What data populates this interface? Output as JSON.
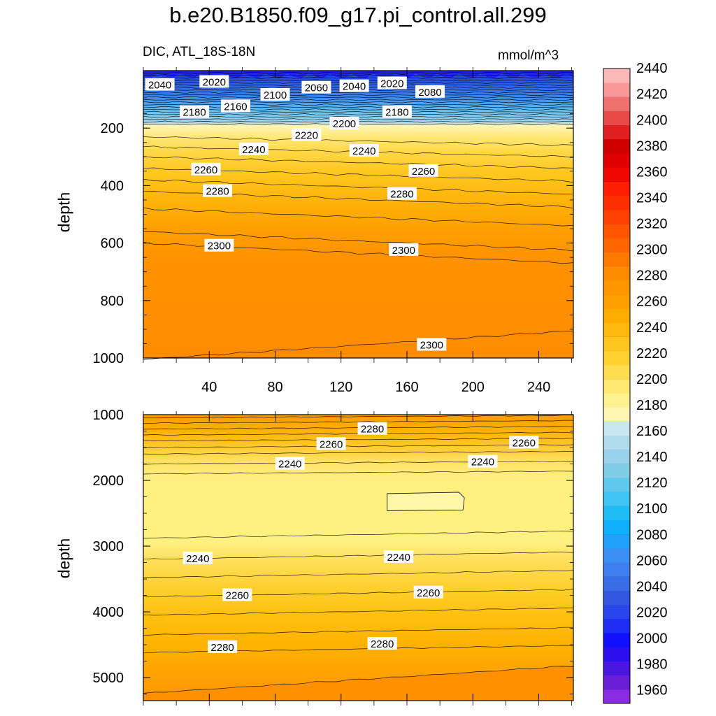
{
  "chart_data": {
    "type": "contour",
    "title": "b.e20.B1850.f09_g17.pi_control.all.299",
    "variable": "DIC, ATL_18S-18N",
    "units": "mmol/m^3",
    "xlabel": "",
    "ylabel": "depth",
    "x_ticks": [
      "40",
      "80",
      "120",
      "160",
      "200",
      "240"
    ],
    "x_tick_values": [
      40,
      80,
      120,
      160,
      200,
      240
    ],
    "xlim": [
      0,
      261
    ],
    "panels": [
      {
        "name": "upper",
        "ylim": [
          0,
          1000
        ],
        "y_ticks": [
          "200",
          "400",
          "600",
          "800",
          "1000"
        ],
        "y_tick_values": [
          200,
          400,
          600,
          800,
          1000
        ],
        "contour_labels": [
          {
            "text": "2040",
            "x": 10,
            "y": 50
          },
          {
            "text": "2020",
            "x": 43,
            "y": 40
          },
          {
            "text": "2100",
            "x": 80,
            "y": 85
          },
          {
            "text": "2060",
            "x": 105,
            "y": 60
          },
          {
            "text": "2040",
            "x": 128,
            "y": 55
          },
          {
            "text": "2020",
            "x": 151,
            "y": 45
          },
          {
            "text": "2080",
            "x": 174,
            "y": 75
          },
          {
            "text": "2180",
            "x": 31,
            "y": 145
          },
          {
            "text": "2160",
            "x": 56,
            "y": 125
          },
          {
            "text": "2180",
            "x": 154,
            "y": 145
          },
          {
            "text": "2200",
            "x": 122,
            "y": 185
          },
          {
            "text": "2220",
            "x": 99,
            "y": 225
          },
          {
            "text": "2240",
            "x": 67,
            "y": 275
          },
          {
            "text": "2240",
            "x": 134,
            "y": 280
          },
          {
            "text": "2260",
            "x": 38,
            "y": 345
          },
          {
            "text": "2260",
            "x": 170,
            "y": 350
          },
          {
            "text": "2280",
            "x": 45,
            "y": 420
          },
          {
            "text": "2280",
            "x": 157,
            "y": 430
          },
          {
            "text": "2300",
            "x": 46,
            "y": 610
          },
          {
            "text": "2300",
            "x": 158,
            "y": 625
          },
          {
            "text": "2300",
            "x": 175,
            "y": 955
          }
        ]
      },
      {
        "name": "lower",
        "ylim": [
          1000,
          5350
        ],
        "y_ticks": [
          "1000",
          "2000",
          "3000",
          "4000",
          "5000"
        ],
        "y_tick_values": [
          1000,
          2000,
          3000,
          4000,
          5000
        ],
        "contour_labels": [
          {
            "text": "2280",
            "x": 139,
            "y": 1220
          },
          {
            "text": "2260",
            "x": 114,
            "y": 1450
          },
          {
            "text": "2240",
            "x": 89,
            "y": 1750
          },
          {
            "text": "2260",
            "x": 231,
            "y": 1430
          },
          {
            "text": "2240",
            "x": 206,
            "y": 1720
          },
          {
            "text": "2240",
            "x": 33,
            "y": 3190
          },
          {
            "text": "2240",
            "x": 155,
            "y": 3170
          },
          {
            "text": "2260",
            "x": 57,
            "y": 3750
          },
          {
            "text": "2260",
            "x": 173,
            "y": 3710
          },
          {
            "text": "2280",
            "x": 48,
            "y": 4540
          },
          {
            "text": "2280",
            "x": 145,
            "y": 4490
          }
        ]
      }
    ],
    "colorbar": {
      "levels": [
        1950,
        1960,
        1970,
        1980,
        1990,
        2000,
        2010,
        2020,
        2030,
        2040,
        2050,
        2060,
        2070,
        2080,
        2090,
        2100,
        2110,
        2120,
        2130,
        2140,
        2150,
        2160,
        2170,
        2180,
        2190,
        2200,
        2210,
        2220,
        2230,
        2240,
        2250,
        2260,
        2270,
        2280,
        2290,
        2300,
        2310,
        2320,
        2330,
        2340,
        2350,
        2360,
        2370,
        2380,
        2390,
        2400,
        2410,
        2420,
        2430,
        2440,
        2450
      ],
      "labels": [
        "1960",
        "1980",
        "2000",
        "2020",
        "2040",
        "2060",
        "2080",
        "2100",
        "2120",
        "2140",
        "2160",
        "2180",
        "2200",
        "2220",
        "2240",
        "2260",
        "2280",
        "2300",
        "2320",
        "2340",
        "2360",
        "2380",
        "2400",
        "2420",
        "2440"
      ],
      "label_values": [
        1960,
        1980,
        2000,
        2020,
        2040,
        2060,
        2080,
        2100,
        2120,
        2140,
        2160,
        2180,
        2200,
        2220,
        2240,
        2260,
        2280,
        2300,
        2320,
        2340,
        2360,
        2380,
        2400,
        2420,
        2440
      ],
      "colors": [
        "#8b2be2",
        "#6a1fd6",
        "#4a15e0",
        "#2a0ef0",
        "#1010ff",
        "#1c2ef5",
        "#2a46ea",
        "#3358e0",
        "#3a6ce6",
        "#3f7eee",
        "#3a90f4",
        "#20a0f8",
        "#10b0fc",
        "#20bcf8",
        "#40c4f4",
        "#60c8ec",
        "#80cce6",
        "#98d2ea",
        "#b0dcee",
        "#c8e6f4",
        "#fff4b0",
        "#fff090",
        "#ffe870",
        "#ffdc50",
        "#ffd030",
        "#ffc420",
        "#ffb810",
        "#ffac00",
        "#ffa000",
        "#ff9600",
        "#ff8c00",
        "#ff7800",
        "#ff6600",
        "#ff5400",
        "#ff4000",
        "#ff2e00",
        "#ff1c00",
        "#f00800",
        "#e00000",
        "#d00000",
        "#e02020",
        "#e84848",
        "#f07070",
        "#f89898",
        "#fcb8b8"
      ]
    }
  }
}
